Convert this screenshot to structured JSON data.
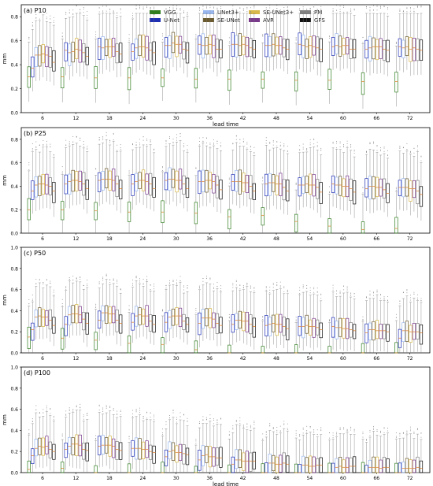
{
  "legend": [
    {
      "name": "VGG",
      "color": "#2f7d1e"
    },
    {
      "name": "UNet3+",
      "color": "#9ab8f0"
    },
    {
      "name": "SE-UNet3+",
      "color": "#d8b84a"
    },
    {
      "name": "PM",
      "color": "#808080"
    },
    {
      "name": "U-Net",
      "color": "#1f2fb4"
    },
    {
      "name": "SE-UNet",
      "color": "#6b5a2e"
    },
    {
      "name": "AVR",
      "color": "#7a3a8c"
    },
    {
      "name": "GFS",
      "color": "#111111"
    }
  ],
  "chart_data": [
    {
      "type": "box",
      "title": "(a) P10",
      "xlabel": "lead time",
      "ylabel": "mm",
      "ylim": [
        0,
        0.9
      ],
      "yticks": [
        0.0,
        0.2,
        0.4,
        0.6,
        0.8
      ],
      "categories": [
        "6",
        "12",
        "18",
        "24",
        "30",
        "36",
        "42",
        "48",
        "54",
        "60",
        "66",
        "72"
      ],
      "series": [
        {
          "name": "VGG",
          "median": [
            0.3,
            0.3,
            0.29,
            0.29,
            0.29,
            0.28,
            0.28,
            0.28,
            0.27,
            0.27,
            0.26,
            0.26
          ]
        },
        {
          "name": "U-Net",
          "median": [
            0.37,
            0.52,
            0.55,
            0.51,
            0.56,
            0.57,
            0.57,
            0.56,
            0.57,
            0.55,
            0.53,
            0.55
          ]
        },
        {
          "name": "UNet3+",
          "median": [
            0.48,
            0.5,
            0.54,
            0.54,
            0.56,
            0.56,
            0.57,
            0.56,
            0.56,
            0.56,
            0.54,
            0.54
          ]
        },
        {
          "name": "SE-UNet",
          "median": [
            0.48,
            0.51,
            0.55,
            0.55,
            0.58,
            0.56,
            0.56,
            0.57,
            0.55,
            0.55,
            0.55,
            0.55
          ]
        },
        {
          "name": "SE-UNet3+",
          "median": [
            0.49,
            0.53,
            0.55,
            0.55,
            0.57,
            0.57,
            0.57,
            0.56,
            0.56,
            0.56,
            0.55,
            0.53
          ]
        },
        {
          "name": "AVR",
          "median": [
            0.48,
            0.52,
            0.55,
            0.54,
            0.57,
            0.56,
            0.56,
            0.56,
            0.55,
            0.56,
            0.55,
            0.54
          ]
        },
        {
          "name": "PM",
          "median": [
            0.47,
            0.5,
            0.51,
            0.52,
            0.53,
            0.53,
            0.54,
            0.54,
            0.54,
            0.53,
            0.53,
            0.53
          ]
        },
        {
          "name": "GFS",
          "median": [
            0.42,
            0.47,
            0.49,
            0.5,
            0.52,
            0.53,
            0.53,
            0.53,
            0.53,
            0.53,
            0.52,
            0.52
          ]
        }
      ]
    },
    {
      "type": "box",
      "title": "(b) P25",
      "xlabel": "",
      "ylabel": "mm",
      "ylim": [
        0,
        0.9
      ],
      "yticks": [
        0.0,
        0.2,
        0.4,
        0.6,
        0.8
      ],
      "categories": [
        "6",
        "12",
        "18",
        "24",
        "30",
        "36",
        "42",
        "48",
        "54",
        "60",
        "66",
        "72"
      ],
      "series": [
        {
          "name": "VGG",
          "median": [
            0.2,
            0.2,
            0.19,
            0.18,
            0.18,
            0.17,
            0.14,
            0.15,
            0.1,
            0.06,
            0.03,
            0.04
          ]
        },
        {
          "name": "U-Net",
          "median": [
            0.36,
            0.42,
            0.45,
            0.42,
            0.45,
            0.44,
            0.44,
            0.42,
            0.41,
            0.42,
            0.38,
            0.39
          ]
        },
        {
          "name": "UNet3+",
          "median": [
            0.41,
            0.44,
            0.46,
            0.44,
            0.46,
            0.44,
            0.44,
            0.43,
            0.41,
            0.41,
            0.4,
            0.39
          ]
        },
        {
          "name": "SE-UNet",
          "median": [
            0.42,
            0.45,
            0.46,
            0.45,
            0.46,
            0.45,
            0.44,
            0.43,
            0.42,
            0.41,
            0.4,
            0.39
          ]
        },
        {
          "name": "SE-UNet3+",
          "median": [
            0.42,
            0.45,
            0.46,
            0.45,
            0.45,
            0.45,
            0.43,
            0.42,
            0.41,
            0.4,
            0.39,
            0.38
          ]
        },
        {
          "name": "AVR",
          "median": [
            0.41,
            0.44,
            0.45,
            0.44,
            0.45,
            0.44,
            0.43,
            0.42,
            0.41,
            0.4,
            0.39,
            0.38
          ]
        },
        {
          "name": "PM",
          "median": [
            0.4,
            0.42,
            0.42,
            0.42,
            0.42,
            0.41,
            0.4,
            0.39,
            0.39,
            0.38,
            0.37,
            0.36
          ]
        },
        {
          "name": "GFS",
          "median": [
            0.36,
            0.38,
            0.38,
            0.38,
            0.38,
            0.37,
            0.36,
            0.36,
            0.35,
            0.35,
            0.34,
            0.33
          ]
        }
      ]
    },
    {
      "type": "box",
      "title": "(c) P50",
      "xlabel": "",
      "ylabel": "mm",
      "ylim": [
        0,
        1.0
      ],
      "yticks": [
        0.0,
        0.2,
        0.4,
        0.6,
        0.8,
        1.0
      ],
      "categories": [
        "6",
        "12",
        "18",
        "24",
        "30",
        "36",
        "42",
        "48",
        "54",
        "60",
        "66",
        "72"
      ],
      "series": [
        {
          "name": "VGG",
          "median": [
            0.15,
            0.14,
            0.12,
            0.09,
            0.08,
            0.03,
            0.0,
            0.0,
            0.0,
            0.0,
            0.0,
            0.0
          ]
        },
        {
          "name": "U-Net",
          "median": [
            0.22,
            0.27,
            0.31,
            0.29,
            0.29,
            0.28,
            0.27,
            0.26,
            0.25,
            0.25,
            0.19,
            0.14
          ]
        },
        {
          "name": "UNet3+",
          "median": [
            0.34,
            0.36,
            0.38,
            0.35,
            0.34,
            0.33,
            0.31,
            0.27,
            0.25,
            0.24,
            0.22,
            0.21
          ]
        },
        {
          "name": "SE-UNet",
          "median": [
            0.35,
            0.37,
            0.38,
            0.36,
            0.35,
            0.33,
            0.31,
            0.28,
            0.26,
            0.24,
            0.22,
            0.21
          ]
        },
        {
          "name": "SE-UNet3+",
          "median": [
            0.34,
            0.37,
            0.37,
            0.35,
            0.35,
            0.33,
            0.3,
            0.27,
            0.25,
            0.23,
            0.21,
            0.2
          ]
        },
        {
          "name": "AVR",
          "median": [
            0.34,
            0.36,
            0.37,
            0.35,
            0.35,
            0.32,
            0.3,
            0.27,
            0.25,
            0.23,
            0.21,
            0.2
          ]
        },
        {
          "name": "PM",
          "median": [
            0.31,
            0.32,
            0.31,
            0.3,
            0.3,
            0.28,
            0.27,
            0.25,
            0.24,
            0.22,
            0.21,
            0.2
          ]
        },
        {
          "name": "GFS",
          "median": [
            0.26,
            0.28,
            0.28,
            0.27,
            0.27,
            0.26,
            0.25,
            0.23,
            0.22,
            0.21,
            0.2,
            0.19
          ]
        }
      ]
    },
    {
      "type": "box",
      "title": "(d) P100",
      "xlabel": "lead time",
      "ylabel": "mm",
      "ylim": [
        0,
        1.0
      ],
      "yticks": [
        0.0,
        0.2,
        0.4,
        0.6,
        0.8,
        1.0
      ],
      "categories": [
        "6",
        "12",
        "18",
        "24",
        "30",
        "36",
        "42",
        "48",
        "54",
        "60",
        "66",
        "72"
      ],
      "series": [
        {
          "name": "VGG",
          "median": [
            0.03,
            0.04,
            0.0,
            0.0,
            0.0,
            0.0,
            0.0,
            0.0,
            0.0,
            0.0,
            0.0,
            0.0
          ]
        },
        {
          "name": "U-Net",
          "median": [
            0.16,
            0.22,
            0.25,
            0.23,
            0.15,
            0.12,
            0.08,
            0.0,
            0.0,
            0.0,
            0.0,
            0.0
          ]
        },
        {
          "name": "UNet3+",
          "median": [
            0.23,
            0.25,
            0.26,
            0.23,
            0.2,
            0.16,
            0.12,
            0.09,
            0.07,
            0.05,
            0.05,
            0.04
          ]
        },
        {
          "name": "SE-UNet",
          "median": [
            0.25,
            0.27,
            0.26,
            0.23,
            0.21,
            0.17,
            0.12,
            0.09,
            0.07,
            0.06,
            0.05,
            0.04
          ]
        },
        {
          "name": "SE-UNet3+",
          "median": [
            0.24,
            0.27,
            0.26,
            0.22,
            0.19,
            0.15,
            0.11,
            0.08,
            0.06,
            0.05,
            0.05,
            0.04
          ]
        },
        {
          "name": "AVR",
          "median": [
            0.25,
            0.26,
            0.25,
            0.22,
            0.19,
            0.15,
            0.11,
            0.08,
            0.06,
            0.05,
            0.04,
            0.04
          ]
        },
        {
          "name": "PM",
          "median": [
            0.22,
            0.22,
            0.22,
            0.2,
            0.18,
            0.14,
            0.11,
            0.09,
            0.07,
            0.06,
            0.05,
            0.05
          ]
        },
        {
          "name": "GFS",
          "median": [
            0.2,
            0.21,
            0.21,
            0.19,
            0.17,
            0.14,
            0.11,
            0.08,
            0.07,
            0.06,
            0.05,
            0.04
          ]
        }
      ]
    }
  ]
}
